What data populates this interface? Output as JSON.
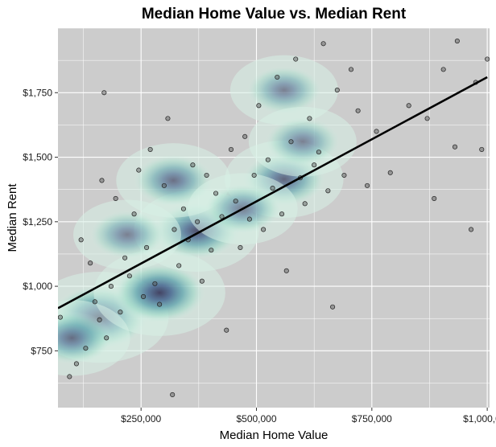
{
  "chart_data": {
    "type": "scatter",
    "title": "Median Home Value vs. Median Rent",
    "xlabel": "Median Home Value",
    "ylabel": "Median Rent",
    "xlim": [
      70000,
      1005000
    ],
    "ylim": [
      530,
      2000
    ],
    "x_ticks": [
      {
        "value": 250000,
        "label": "$250,000"
      },
      {
        "value": 500000,
        "label": "$500,000"
      },
      {
        "value": 750000,
        "label": "$750,000"
      },
      {
        "value": 1000000,
        "label": "$1,000,000"
      }
    ],
    "y_ticks": [
      {
        "value": 750,
        "label": "$750"
      },
      {
        "value": 1000,
        "label": "$1,000"
      },
      {
        "value": 1250,
        "label": "$1,250"
      },
      {
        "value": 1500,
        "label": "$1,500"
      },
      {
        "value": 1750,
        "label": "$1,750"
      }
    ],
    "grid": true,
    "background": "#cccccc",
    "trend_line": {
      "type": "linear",
      "x": [
        70000,
        1000000
      ],
      "y": [
        915,
        1810
      ],
      "color": "#000000"
    },
    "density_fill": {
      "low_color": "#d7f0e6",
      "high_color": "#2c2a50"
    },
    "density_centers": [
      {
        "x": 160000,
        "y": 880,
        "weight": 1.0
      },
      {
        "x": 290000,
        "y": 975,
        "weight": 0.85
      },
      {
        "x": 370000,
        "y": 1215,
        "weight": 0.7
      },
      {
        "x": 560000,
        "y": 1415,
        "weight": 0.55
      },
      {
        "x": 320000,
        "y": 1410,
        "weight": 0.45
      },
      {
        "x": 100000,
        "y": 800,
        "weight": 0.5
      },
      {
        "x": 470000,
        "y": 1300,
        "weight": 0.35
      },
      {
        "x": 560000,
        "y": 1760,
        "weight": 0.3
      },
      {
        "x": 600000,
        "y": 1560,
        "weight": 0.3
      },
      {
        "x": 220000,
        "y": 1200,
        "weight": 0.3
      }
    ],
    "points": [
      {
        "x": 75000,
        "y": 880
      },
      {
        "x": 95000,
        "y": 650
      },
      {
        "x": 110000,
        "y": 700
      },
      {
        "x": 120000,
        "y": 1180
      },
      {
        "x": 130000,
        "y": 760
      },
      {
        "x": 140000,
        "y": 1090
      },
      {
        "x": 150000,
        "y": 940
      },
      {
        "x": 160000,
        "y": 870
      },
      {
        "x": 165000,
        "y": 1410
      },
      {
        "x": 170000,
        "y": 1750
      },
      {
        "x": 175000,
        "y": 800
      },
      {
        "x": 185000,
        "y": 1000
      },
      {
        "x": 195000,
        "y": 1340
      },
      {
        "x": 205000,
        "y": 900
      },
      {
        "x": 215000,
        "y": 1110
      },
      {
        "x": 225000,
        "y": 1040
      },
      {
        "x": 235000,
        "y": 1280
      },
      {
        "x": 245000,
        "y": 1450
      },
      {
        "x": 255000,
        "y": 960
      },
      {
        "x": 262000,
        "y": 1150
      },
      {
        "x": 270000,
        "y": 1530
      },
      {
        "x": 280000,
        "y": 1010
      },
      {
        "x": 290000,
        "y": 930
      },
      {
        "x": 300000,
        "y": 1390
      },
      {
        "x": 308000,
        "y": 1650
      },
      {
        "x": 318000,
        "y": 580
      },
      {
        "x": 322000,
        "y": 1220
      },
      {
        "x": 332000,
        "y": 1080
      },
      {
        "x": 342000,
        "y": 1300
      },
      {
        "x": 352000,
        "y": 1180
      },
      {
        "x": 362000,
        "y": 1470
      },
      {
        "x": 372000,
        "y": 1250
      },
      {
        "x": 382000,
        "y": 1020
      },
      {
        "x": 392000,
        "y": 1430
      },
      {
        "x": 402000,
        "y": 1140
      },
      {
        "x": 412000,
        "y": 1360
      },
      {
        "x": 425000,
        "y": 1270
      },
      {
        "x": 435000,
        "y": 830
      },
      {
        "x": 445000,
        "y": 1530
      },
      {
        "x": 455000,
        "y": 1330
      },
      {
        "x": 465000,
        "y": 1150
      },
      {
        "x": 475000,
        "y": 1580
      },
      {
        "x": 485000,
        "y": 1260
      },
      {
        "x": 495000,
        "y": 1430
      },
      {
        "x": 505000,
        "y": 1700
      },
      {
        "x": 515000,
        "y": 1220
      },
      {
        "x": 525000,
        "y": 1490
      },
      {
        "x": 535000,
        "y": 1380
      },
      {
        "x": 545000,
        "y": 1810
      },
      {
        "x": 555000,
        "y": 1280
      },
      {
        "x": 565000,
        "y": 1060
      },
      {
        "x": 575000,
        "y": 1560
      },
      {
        "x": 585000,
        "y": 1880
      },
      {
        "x": 595000,
        "y": 1420
      },
      {
        "x": 605000,
        "y": 1320
      },
      {
        "x": 615000,
        "y": 1650
      },
      {
        "x": 625000,
        "y": 1470
      },
      {
        "x": 635000,
        "y": 1520
      },
      {
        "x": 645000,
        "y": 1940
      },
      {
        "x": 655000,
        "y": 1370
      },
      {
        "x": 665000,
        "y": 920
      },
      {
        "x": 675000,
        "y": 1760
      },
      {
        "x": 690000,
        "y": 1430
      },
      {
        "x": 705000,
        "y": 1840
      },
      {
        "x": 720000,
        "y": 1680
      },
      {
        "x": 740000,
        "y": 1390
      },
      {
        "x": 760000,
        "y": 1600
      },
      {
        "x": 790000,
        "y": 1440
      },
      {
        "x": 830000,
        "y": 1700
      },
      {
        "x": 870000,
        "y": 1650
      },
      {
        "x": 885000,
        "y": 1340
      },
      {
        "x": 905000,
        "y": 1840
      },
      {
        "x": 930000,
        "y": 1540
      },
      {
        "x": 935000,
        "y": 1950
      },
      {
        "x": 965000,
        "y": 1220
      },
      {
        "x": 975000,
        "y": 1790
      },
      {
        "x": 988000,
        "y": 1530
      },
      {
        "x": 1000000,
        "y": 1880
      }
    ]
  }
}
